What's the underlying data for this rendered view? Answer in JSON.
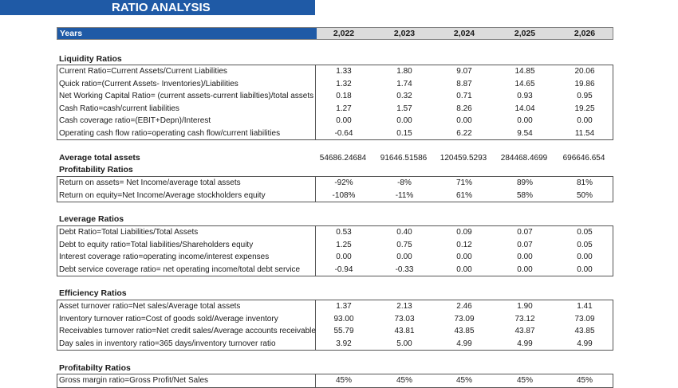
{
  "banner": "RATIO ANALYSIS",
  "header": {
    "label": "Years",
    "years": [
      "2,022",
      "2,023",
      "2,024",
      "2,025",
      "2,026"
    ]
  },
  "liquidity": {
    "title": "Liquidity Ratios",
    "rows": [
      {
        "name": "Current Ratio=Current Assets/Current Liabilities",
        "values": [
          "1.33",
          "1.80",
          "9.07",
          "14.85",
          "20.06"
        ]
      },
      {
        "name": "Quick ratio=(Current Assets- Inventories)/Liabilities",
        "values": [
          "1.32",
          "1.74",
          "8.87",
          "14.65",
          "19.86"
        ]
      },
      {
        "name": "Net Working Capital Ratio= (current assets-current liabilties)/total assets",
        "values": [
          "0.18",
          "0.32",
          "0.71",
          "0.93",
          "0.95"
        ]
      },
      {
        "name": "Cash Ratio=cash/current liabilities",
        "values": [
          "1.27",
          "1.57",
          "8.26",
          "14.04",
          "19.25"
        ]
      },
      {
        "name": "Cash coverage ratio=(EBIT+Depn)/Interest",
        "values": [
          "0.00",
          "0.00",
          "0.00",
          "0.00",
          "0.00"
        ]
      },
      {
        "name": "Operating cash flow ratio=operating cash flow/current liabilities",
        "values": [
          "-0.64",
          "0.15",
          "6.22",
          "9.54",
          "11.54"
        ]
      }
    ]
  },
  "average_assets": {
    "name": "Average total assets",
    "values": [
      "54686.24684",
      "91646.51586",
      "120459.5293",
      "284468.4699",
      "696646.654"
    ]
  },
  "profitability": {
    "title": "Profitability Ratios",
    "rows": [
      {
        "name": "Return on assets= Net Income/average total assets",
        "values": [
          "-92%",
          "-8%",
          "71%",
          "89%",
          "81%"
        ]
      },
      {
        "name": "Return on equity=Net Income/Average stockholders equity",
        "values": [
          "-108%",
          "-11%",
          "61%",
          "58%",
          "50%"
        ]
      }
    ]
  },
  "leverage": {
    "title": "Leverage Ratios",
    "rows": [
      {
        "name": "Debt Ratio=Total Liabilities/Total Assets",
        "values": [
          "0.53",
          "0.40",
          "0.09",
          "0.07",
          "0.05"
        ]
      },
      {
        "name": "Debt to equity ratio=Total liabilities/Shareholders equity",
        "values": [
          "1.25",
          "0.75",
          "0.12",
          "0.07",
          "0.05"
        ]
      },
      {
        "name": "Interest coverage ratio=operating income/interest expenses",
        "values": [
          "0.00",
          "0.00",
          "0.00",
          "0.00",
          "0.00"
        ]
      },
      {
        "name": "Debt service coverage ratio= net operating income/total debt service",
        "values": [
          "-0.94",
          "-0.33",
          "0.00",
          "0.00",
          "0.00"
        ]
      }
    ]
  },
  "efficiency": {
    "title": "Efficiency Ratios",
    "rows": [
      {
        "name": "Asset turnover ratio=Net sales/Average total assets",
        "values": [
          "1.37",
          "2.13",
          "2.46",
          "1.90",
          "1.41"
        ]
      },
      {
        "name": "Inventory turnover ratio=Cost of goods sold/Average inventory",
        "values": [
          "93.00",
          "73.03",
          "73.09",
          "73.12",
          "73.09"
        ]
      },
      {
        "name": "Receivables turnover ratio=Net credit sales/Average accounts receivable",
        "values": [
          "55.79",
          "43.81",
          "43.85",
          "43.87",
          "43.85"
        ]
      },
      {
        "name": "Day sales in inventory ratio=365 days/inventory turnover ratio",
        "values": [
          "3.92",
          "5.00",
          "4.99",
          "4.99",
          "4.99"
        ]
      }
    ]
  },
  "profitability2": {
    "title": "Profitabilty Ratios",
    "rows": [
      {
        "name": "Gross margin ratio=Gross Profit/Net Sales",
        "values": [
          "45%",
          "45%",
          "45%",
          "45%",
          "45%"
        ]
      }
    ]
  }
}
